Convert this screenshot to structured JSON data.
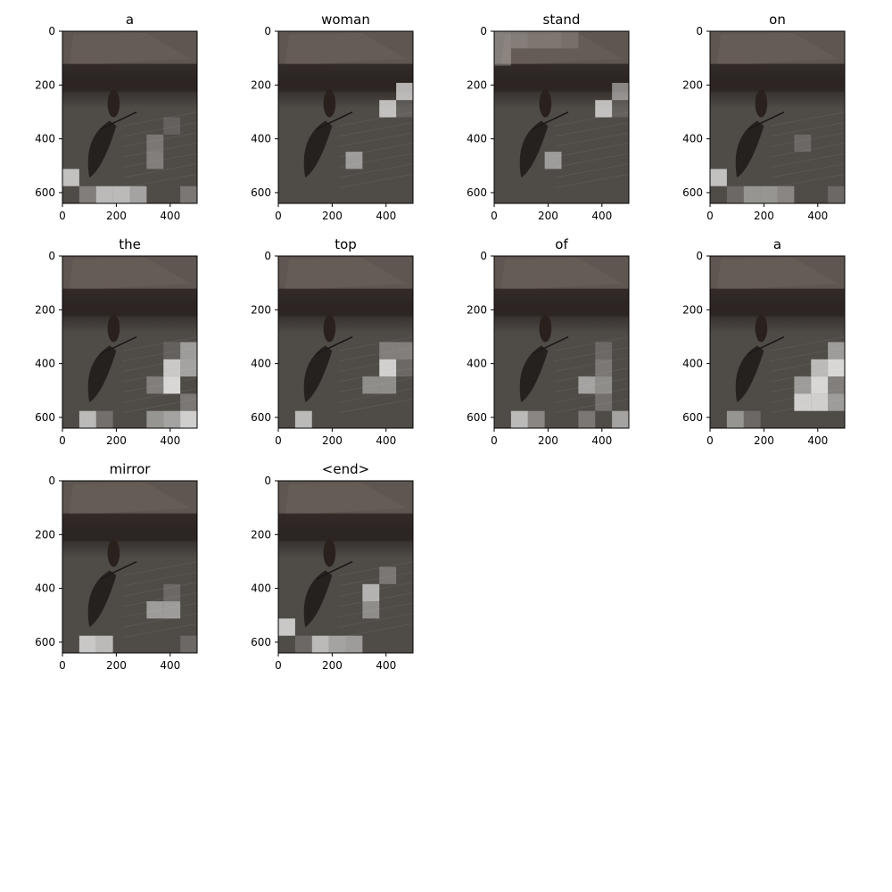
{
  "figure": {
    "title": "",
    "background": "#ffffff"
  },
  "chart_data": {
    "type": "heatmap",
    "description_of_marks": "attention overlays",
    "image": {
      "x_range": [
        0,
        500
      ],
      "y_range": [
        0,
        640
      ],
      "x_ticks": [
        0,
        200,
        400
      ],
      "y_ticks": [
        0,
        200,
        400,
        600
      ],
      "grid_cols": 8,
      "grid_rows": 10
    },
    "colors": {
      "photo_sky": "#5e5650",
      "photo_snow": "#4f4b47",
      "photo_crowd": "#2b2522",
      "photo_shadow": "#1c1a19",
      "attention_highlight": "#ffffff",
      "axis": "#000000"
    },
    "panels": [
      {
        "word": "a",
        "cells": [
          [
            9,
            1,
            0.35
          ],
          [
            9,
            2,
            0.75
          ],
          [
            9,
            3,
            0.75
          ],
          [
            9,
            4,
            0.6
          ],
          [
            8,
            0,
            0.8
          ],
          [
            7,
            5,
            0.35
          ],
          [
            6,
            5,
            0.3
          ],
          [
            9,
            7,
            0.3
          ],
          [
            5,
            6,
            0.15
          ]
        ]
      },
      {
        "word": "woman",
        "cells": [
          [
            4,
            6,
            0.8
          ],
          [
            3,
            7,
            0.8
          ],
          [
            7,
            4,
            0.55
          ],
          [
            4,
            7,
            0.15
          ]
        ]
      },
      {
        "word": "stand",
        "cells": [
          [
            0,
            0,
            0.3
          ],
          [
            0,
            1,
            0.25
          ],
          [
            0,
            2,
            0.2
          ],
          [
            0,
            3,
            0.2
          ],
          [
            0,
            4,
            0.15
          ],
          [
            1,
            0,
            0.3
          ],
          [
            4,
            6,
            0.8
          ],
          [
            3,
            7,
            0.55
          ],
          [
            7,
            3,
            0.55
          ],
          [
            4,
            7,
            0.15
          ]
        ]
      },
      {
        "word": "on",
        "cells": [
          [
            8,
            0,
            0.8
          ],
          [
            9,
            2,
            0.5
          ],
          [
            9,
            3,
            0.5
          ],
          [
            9,
            4,
            0.4
          ],
          [
            9,
            1,
            0.2
          ],
          [
            6,
            5,
            0.2
          ],
          [
            9,
            7,
            0.2
          ]
        ]
      },
      {
        "word": "the",
        "cells": [
          [
            5,
            7,
            0.55
          ],
          [
            6,
            7,
            0.6
          ],
          [
            6,
            6,
            0.85
          ],
          [
            7,
            6,
            0.95
          ],
          [
            7,
            5,
            0.35
          ],
          [
            8,
            7,
            0.3
          ],
          [
            9,
            5,
            0.5
          ],
          [
            9,
            6,
            0.6
          ],
          [
            9,
            7,
            0.9
          ],
          [
            9,
            1,
            0.75
          ],
          [
            9,
            2,
            0.25
          ],
          [
            5,
            6,
            0.15
          ]
        ]
      },
      {
        "word": "top",
        "cells": [
          [
            6,
            6,
            0.9
          ],
          [
            5,
            6,
            0.35
          ],
          [
            5,
            7,
            0.35
          ],
          [
            7,
            5,
            0.45
          ],
          [
            7,
            6,
            0.45
          ],
          [
            9,
            1,
            0.75
          ],
          [
            6,
            7,
            0.2
          ]
        ]
      },
      {
        "word": "of",
        "cells": [
          [
            5,
            6,
            0.2
          ],
          [
            6,
            6,
            0.3
          ],
          [
            7,
            5,
            0.6
          ],
          [
            7,
            6,
            0.45
          ],
          [
            8,
            6,
            0.25
          ],
          [
            9,
            1,
            0.75
          ],
          [
            9,
            2,
            0.4
          ],
          [
            9,
            5,
            0.3
          ],
          [
            9,
            7,
            0.6
          ]
        ]
      },
      {
        "word": "a",
        "cells": [
          [
            5,
            7,
            0.55
          ],
          [
            6,
            6,
            0.75
          ],
          [
            6,
            7,
            0.95
          ],
          [
            7,
            5,
            0.55
          ],
          [
            7,
            6,
            0.95
          ],
          [
            7,
            7,
            0.35
          ],
          [
            8,
            5,
            0.9
          ],
          [
            8,
            6,
            0.9
          ],
          [
            8,
            7,
            0.55
          ],
          [
            9,
            1,
            0.5
          ],
          [
            9,
            2,
            0.2
          ]
        ]
      },
      {
        "word": "mirror",
        "cells": [
          [
            7,
            5,
            0.55
          ],
          [
            7,
            6,
            0.55
          ],
          [
            9,
            1,
            0.85
          ],
          [
            9,
            2,
            0.75
          ],
          [
            6,
            6,
            0.2
          ],
          [
            9,
            7,
            0.2
          ]
        ]
      },
      {
        "word": "<end>",
        "cells": [
          [
            8,
            0,
            0.85
          ],
          [
            9,
            2,
            0.75
          ],
          [
            9,
            3,
            0.6
          ],
          [
            9,
            4,
            0.55
          ],
          [
            6,
            5,
            0.7
          ],
          [
            7,
            5,
            0.45
          ],
          [
            5,
            6,
            0.3
          ],
          [
            9,
            1,
            0.2
          ]
        ]
      }
    ]
  }
}
